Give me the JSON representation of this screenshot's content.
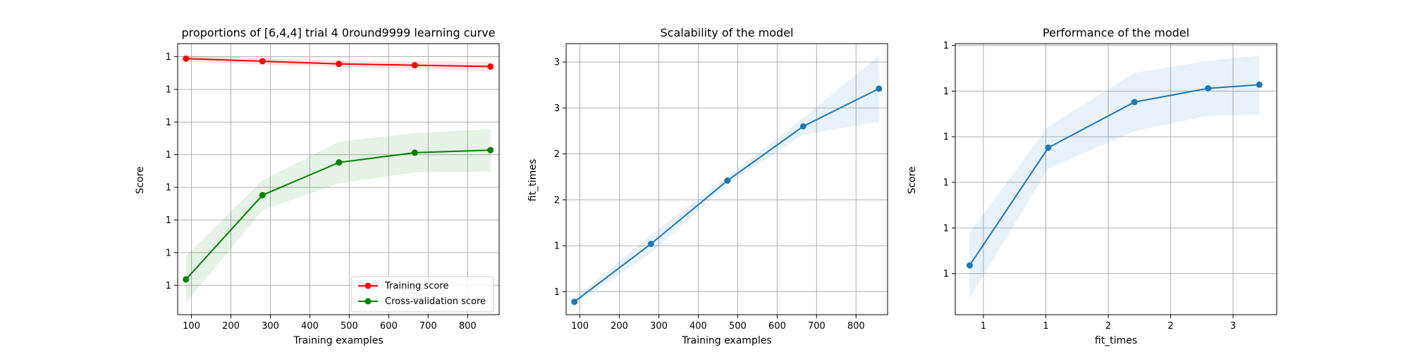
{
  "chart_data": [
    {
      "type": "line",
      "title": "proportions of [6,4,4] trial 4 0round9999 learning curve",
      "xlabel": "Training examples",
      "ylabel": "Score",
      "xlim": [
        65,
        880
      ],
      "ylim": [
        0.605,
        1.02
      ],
      "xticks": [
        100,
        200,
        300,
        400,
        500,
        600,
        700,
        800
      ],
      "yticks": [
        0.65,
        0.7,
        0.75,
        0.8,
        0.85,
        0.9,
        0.95,
        1.0
      ],
      "grid": true,
      "legend": "lower right",
      "series": [
        {
          "name": "Training score",
          "color": "#ff0000",
          "x": [
            86,
            280,
            474,
            666,
            858
          ],
          "y": [
            0.997,
            0.993,
            0.989,
            0.987,
            0.985
          ],
          "band_low": [
            0.992,
            0.988,
            0.984,
            0.981,
            0.978
          ],
          "band_high": [
            1.002,
            0.998,
            0.994,
            0.993,
            0.992
          ]
        },
        {
          "name": "Cross-validation score",
          "color": "#008000",
          "x": [
            86,
            280,
            474,
            666,
            858
          ],
          "y": [
            0.659,
            0.788,
            0.838,
            0.853,
            0.857
          ],
          "band_low": [
            0.623,
            0.765,
            0.806,
            0.823,
            0.824
          ],
          "band_high": [
            0.695,
            0.811,
            0.87,
            0.883,
            0.889
          ]
        }
      ]
    },
    {
      "type": "line",
      "title": "Scalability of the model",
      "xlabel": "Training examples",
      "ylabel": "fit_times",
      "xlim": [
        65,
        880
      ],
      "ylim": [
        0.25,
        3.2
      ],
      "xticks": [
        100,
        200,
        300,
        400,
        500,
        600,
        700,
        800
      ],
      "yticks": [
        0.5,
        1.0,
        1.5,
        2.0,
        2.5,
        3.0
      ],
      "grid": true,
      "series": [
        {
          "color": "#1f77b4",
          "x": [
            86,
            280,
            474,
            666,
            858
          ],
          "y": [
            0.39,
            1.02,
            1.71,
            2.3,
            2.71
          ],
          "band_low": [
            0.36,
            0.92,
            1.67,
            2.21,
            2.35
          ],
          "band_high": [
            0.42,
            1.12,
            1.75,
            2.39,
            3.07
          ]
        }
      ]
    },
    {
      "type": "line",
      "title": "Performance of the model",
      "xlabel": "fit_times",
      "ylabel": "Score",
      "xlim": [
        0.275,
        2.85
      ],
      "ylim": [
        0.605,
        0.902
      ],
      "xticks": [
        0.5,
        1.0,
        1.5,
        2.0,
        2.5
      ],
      "yticks": [
        0.65,
        0.7,
        0.75,
        0.8,
        0.85,
        0.9
      ],
      "grid": true,
      "series": [
        {
          "color": "#1f77b4",
          "x": [
            0.39,
            1.02,
            1.71,
            2.3,
            2.71
          ],
          "y": [
            0.659,
            0.788,
            0.838,
            0.853,
            0.857
          ],
          "band_low": [
            0.623,
            0.765,
            0.806,
            0.823,
            0.824
          ],
          "band_high": [
            0.695,
            0.811,
            0.87,
            0.883,
            0.889
          ]
        }
      ]
    }
  ]
}
